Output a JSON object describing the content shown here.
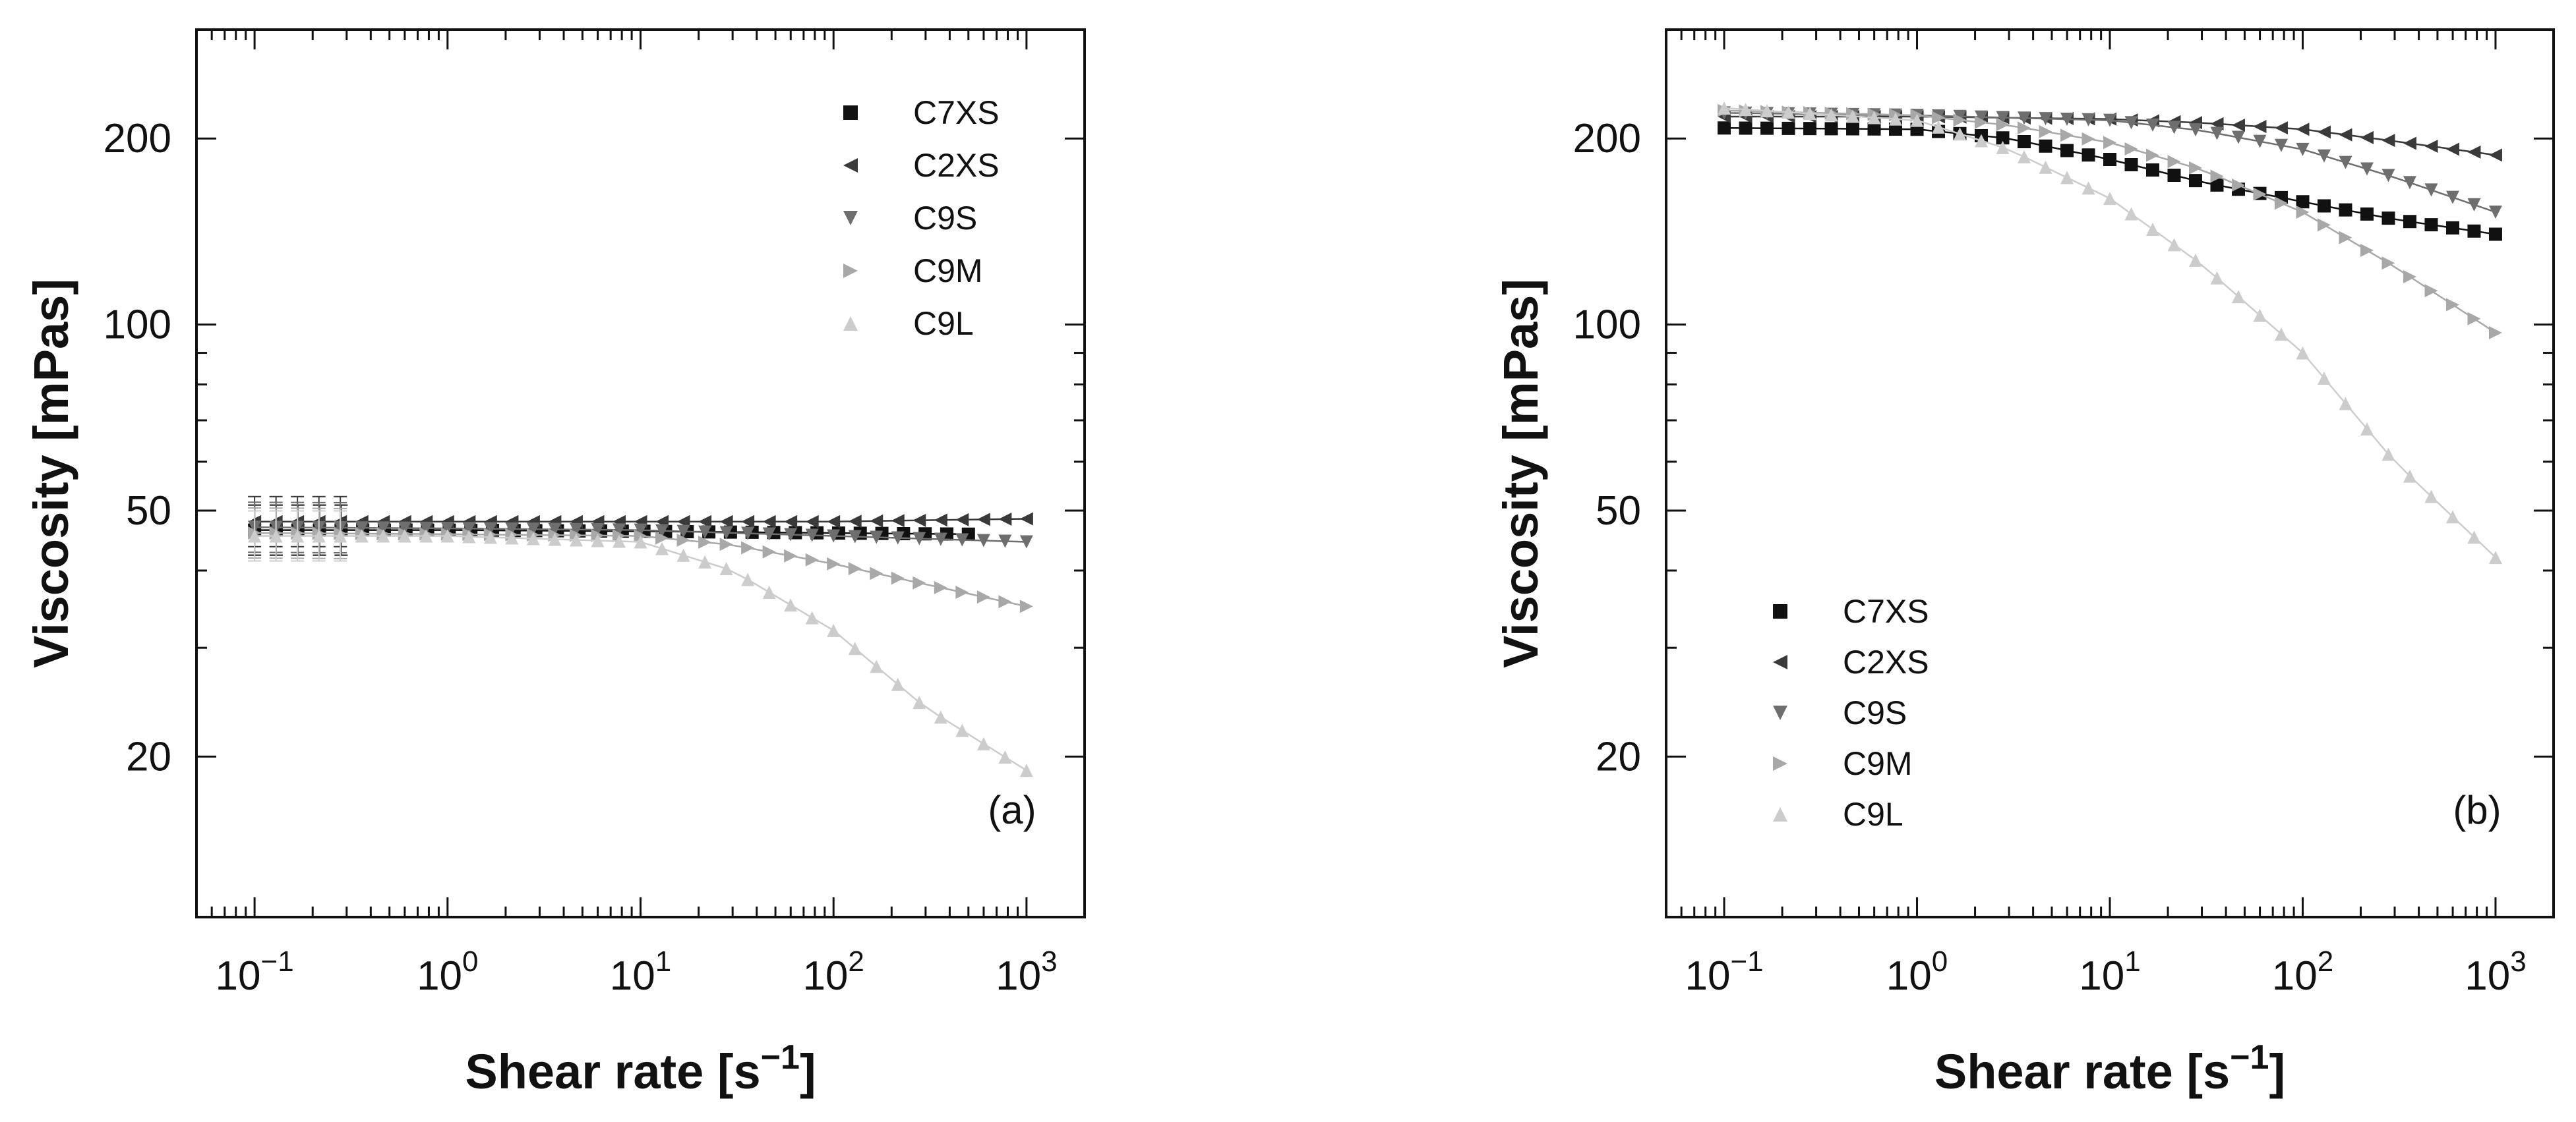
{
  "chart_data": [
    {
      "type": "scatter",
      "panel_label": "(a)",
      "xscale": "log",
      "yscale": "log",
      "xlim": [
        0.05,
        2000
      ],
      "ylim": [
        11,
        300
      ],
      "x_ticks": [
        {
          "value": 0.1,
          "base": "10",
          "exp": "−1"
        },
        {
          "value": 1,
          "base": "10",
          "exp": "0"
        },
        {
          "value": 10,
          "base": "10",
          "exp": "1"
        },
        {
          "value": 100,
          "base": "10",
          "exp": "2"
        },
        {
          "value": 1000,
          "base": "10",
          "exp": "3"
        }
      ],
      "y_ticks": [
        {
          "value": 20,
          "label": "20"
        },
        {
          "value": 50,
          "label": "50"
        },
        {
          "value": 100,
          "label": "100"
        },
        {
          "value": 200,
          "label": "200"
        }
      ],
      "xlabel": {
        "text": "Shear rate [s",
        "sup": "−1",
        "end": "]"
      },
      "ylabel": "Viscosity [mPas]",
      "legend_position": "top-right",
      "series": [
        {
          "name": "C7XS",
          "marker": "square",
          "color": "#111111",
          "x": [
            0.1,
            1,
            10,
            100,
            500
          ],
          "values": [
            46.5,
            46.5,
            46.3,
            46.0,
            45.8
          ]
        },
        {
          "name": "C2XS",
          "marker": "triangle-left",
          "color": "#3a3a3a",
          "x": [
            0.1,
            1,
            10,
            100,
            1000
          ],
          "values": [
            48.0,
            48.0,
            48.0,
            48.0,
            48.5
          ]
        },
        {
          "name": "C9S",
          "marker": "triangle-down",
          "color": "#6e6e6e",
          "x": [
            0.1,
            1,
            10,
            100,
            1000
          ],
          "values": [
            47.0,
            46.8,
            46.5,
            45.5,
            44.5
          ]
        },
        {
          "name": "C9M",
          "marker": "triangle-right",
          "color": "#a8a8a8",
          "x": [
            0.1,
            1,
            10,
            30,
            100,
            300,
            1000
          ],
          "values": [
            46.0,
            45.8,
            45.5,
            44.0,
            41.0,
            38.0,
            35.0
          ]
        },
        {
          "name": "C9L",
          "marker": "triangle-up",
          "color": "#cccccc",
          "x": [
            0.1,
            1,
            10,
            30,
            100,
            300,
            1000
          ],
          "values": [
            45.5,
            45.5,
            44.5,
            40.0,
            32.0,
            24.0,
            19.0
          ]
        }
      ]
    },
    {
      "type": "scatter",
      "panel_label": "(b)",
      "xscale": "log",
      "yscale": "log",
      "xlim": [
        0.05,
        2000
      ],
      "ylim": [
        11,
        300
      ],
      "x_ticks": [
        {
          "value": 0.1,
          "base": "10",
          "exp": "−1"
        },
        {
          "value": 1,
          "base": "10",
          "exp": "0"
        },
        {
          "value": 10,
          "base": "10",
          "exp": "1"
        },
        {
          "value": 100,
          "base": "10",
          "exp": "2"
        },
        {
          "value": 1000,
          "base": "10",
          "exp": "3"
        }
      ],
      "y_ticks": [
        {
          "value": 20,
          "label": "20"
        },
        {
          "value": 50,
          "label": "50"
        },
        {
          "value": 100,
          "label": "100"
        },
        {
          "value": 200,
          "label": "200"
        }
      ],
      "xlabel": {
        "text": "Shear rate [s",
        "sup": "−1",
        "end": "]"
      },
      "ylabel": "Viscosity [mPas]",
      "legend_position": "bottom-left",
      "series": [
        {
          "name": "C7XS",
          "marker": "square",
          "color": "#111111",
          "x": [
            0.1,
            1,
            3,
            10,
            30,
            100,
            300,
            1000
          ],
          "values": [
            208,
            207,
            200,
            185,
            170,
            158,
            148,
            140
          ]
        },
        {
          "name": "C2XS",
          "marker": "triangle-left",
          "color": "#3a3a3a",
          "x": [
            0.1,
            1,
            10,
            30,
            100,
            300,
            1000
          ],
          "values": [
            217,
            217,
            215,
            212,
            207,
            198,
            188
          ]
        },
        {
          "name": "C9S",
          "marker": "triangle-down",
          "color": "#6e6e6e",
          "x": [
            0.1,
            1,
            10,
            30,
            100,
            300,
            1000
          ],
          "values": [
            220,
            218,
            214,
            206,
            192,
            173,
            152
          ]
        },
        {
          "name": "C9M",
          "marker": "triangle-right",
          "color": "#a8a8a8",
          "x": [
            0.1,
            1,
            3,
            10,
            30,
            100,
            300,
            1000
          ],
          "values": [
            222,
            218,
            210,
            197,
            178,
            152,
            124,
            97
          ]
        },
        {
          "name": "C9L",
          "marker": "triangle-up",
          "color": "#cccccc",
          "x": [
            0.1,
            1,
            3,
            10,
            30,
            100,
            300,
            1000
          ],
          "values": [
            224,
            214,
            192,
            160,
            125,
            90,
            60,
            42
          ]
        }
      ]
    }
  ]
}
